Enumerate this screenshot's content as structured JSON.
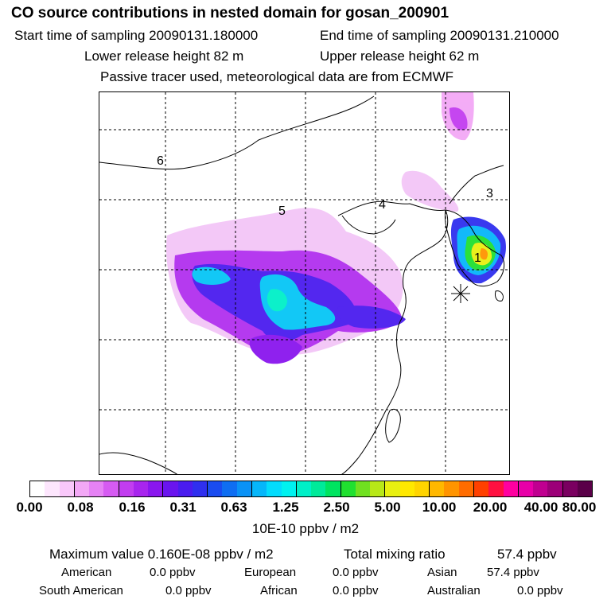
{
  "header": {
    "title": "CO  source contributions in nested domain for gosan_200901",
    "start_time_label": "Start time of sampling 20090131.180000",
    "end_time_label": "End time of sampling 20090131.210000",
    "lower_height_label": "Lower release height   82 m",
    "upper_height_label": "Upper release height   62 m",
    "tracer_note": "Passive tracer used, meteorological data are from ECMWF"
  },
  "map": {
    "region_labels": [
      "1",
      "3",
      "4",
      "5",
      "6"
    ],
    "receptor_marker": "gosan-receptor-asterisk"
  },
  "colorbar": {
    "ticks": [
      "0.00",
      "0.08",
      "0.16",
      "0.31",
      "0.63",
      "1.25",
      "2.50",
      "5.00",
      "10.00",
      "20.00",
      "40.00",
      "80.00"
    ],
    "unit": "10E-10 ppbv / m2",
    "colors": [
      "#ffffff",
      "#fde6fd",
      "#f9c8fa",
      "#f3a8f6",
      "#e682f5",
      "#d65bf2",
      "#c23df0",
      "#a825ee",
      "#8a16ee",
      "#6a14ee",
      "#4a1cef",
      "#2f2fef",
      "#1a4cf0",
      "#0f6ef2",
      "#0a92f6",
      "#06b6fa",
      "#03dcfd",
      "#00f2f0",
      "#00f0c8",
      "#00ea9a",
      "#00e460",
      "#20e030",
      "#70e020",
      "#b8e818",
      "#e8f010",
      "#ffe800",
      "#ffd400",
      "#ffb800",
      "#ff9400",
      "#ff6c00",
      "#ff4000",
      "#ff1040",
      "#ff00a0",
      "#e800a8",
      "#c00090",
      "#9c0078",
      "#7a0060",
      "#5a0048"
    ]
  },
  "stats": {
    "max_value_label": "Maximum value  0.160E-08 ppbv / m2",
    "total_ratio_label": "Total mixing ratio",
    "total_ratio_value": "57.4 ppbv",
    "sources": [
      {
        "name": "American",
        "value": "0.0 ppbv"
      },
      {
        "name": "European",
        "value": "0.0 ppbv"
      },
      {
        "name": "Asian",
        "value": "57.4 ppbv"
      },
      {
        "name": "South American",
        "value": "0.0 ppbv"
      },
      {
        "name": "African",
        "value": "0.0 ppbv"
      },
      {
        "name": "Australian",
        "value": "0.0 ppbv"
      }
    ]
  }
}
